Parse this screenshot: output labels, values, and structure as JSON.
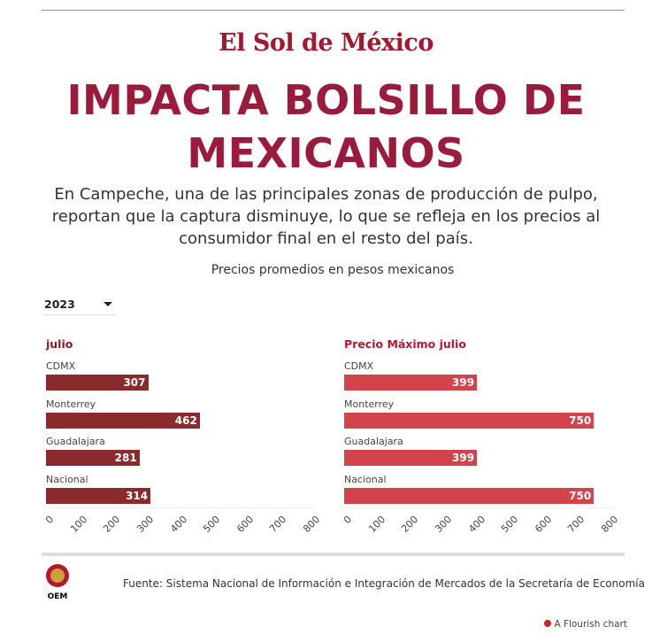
{
  "header": {
    "logo": "El Sol de México",
    "title": "IMPACTA BOLSILLO DE MEXICANOS",
    "subtitle": "En Campeche, una de las principales zonas de producción de pulpo, reportan que la captura disminuye, lo que se refleja en los precios al consumidor final en el resto del país.",
    "unit_note": "Precios promedios en pesos mexicanos"
  },
  "controls": {
    "year_selected": "2023"
  },
  "colors": {
    "title": "#9b1b3c",
    "left_bar": "#8b2a2d",
    "right_bar": "#d2444a"
  },
  "chart_data": [
    {
      "type": "bar",
      "orientation": "horizontal",
      "title": "julio",
      "categories": [
        "CDMX",
        "Monterrey",
        "Guadalajara",
        "Nacional"
      ],
      "values": [
        307,
        462,
        281,
        314
      ],
      "xlim": [
        0,
        800
      ],
      "ticks": [
        "0",
        "100",
        "200",
        "300",
        "400",
        "500",
        "600",
        "700",
        "800"
      ]
    },
    {
      "type": "bar",
      "orientation": "horizontal",
      "title": "Precio Máximo julio",
      "categories": [
        "CDMX",
        "Monterrey",
        "Guadalajara",
        "Nacional"
      ],
      "values": [
        399,
        750,
        399,
        750
      ],
      "xlim": [
        0,
        800
      ],
      "ticks": [
        "0",
        "100",
        "200",
        "300",
        "400",
        "500",
        "600",
        "700",
        "800"
      ]
    }
  ],
  "footer": {
    "source": "Fuente: Sistema Nacional de Información e Integración de Mercados de la Secretaría de Economía",
    "oem_logo": "OEM",
    "flourish": "A Flourish chart"
  }
}
